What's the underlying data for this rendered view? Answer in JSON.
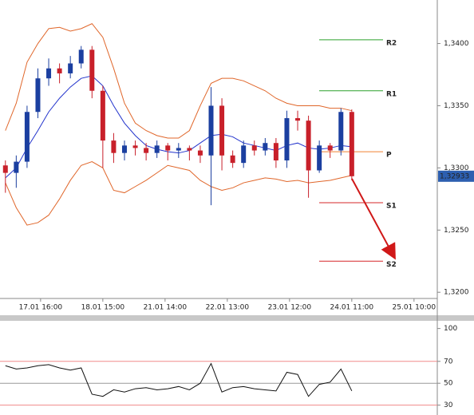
{
  "chart_data": [
    {
      "type": "candlestick",
      "x": [
        2,
        6,
        10,
        14,
        18,
        22,
        26,
        30,
        34,
        38,
        42,
        46,
        50,
        54,
        58,
        62,
        66,
        70,
        74,
        78,
        82,
        86,
        90,
        94,
        98,
        102,
        106,
        110,
        114,
        118,
        122,
        126,
        130
      ],
      "open": [
        1.3302,
        1.3296,
        1.3305,
        1.3345,
        1.3372,
        1.338,
        1.3376,
        1.3384,
        1.3395,
        1.3362,
        1.3322,
        1.3312,
        1.3318,
        1.3316,
        1.3312,
        1.3318,
        1.3314,
        1.3316,
        1.3314,
        1.331,
        1.335,
        1.331,
        1.3304,
        1.3318,
        1.3314,
        1.332,
        1.3306,
        1.334,
        1.3338,
        1.3298,
        1.3318,
        1.3314,
        1.3345
      ],
      "high": [
        1.3306,
        1.331,
        1.335,
        1.338,
        1.3388,
        1.3384,
        1.339,
        1.3398,
        1.3398,
        1.3366,
        1.3328,
        1.3322,
        1.3322,
        1.332,
        1.3322,
        1.332,
        1.332,
        1.3318,
        1.3318,
        1.3365,
        1.3356,
        1.3314,
        1.3322,
        1.3322,
        1.3324,
        1.3324,
        1.3346,
        1.3346,
        1.3342,
        1.3322,
        1.332,
        1.3348,
        1.3347
      ],
      "low": [
        1.328,
        1.3284,
        1.33,
        1.334,
        1.3366,
        1.3368,
        1.3372,
        1.338,
        1.3356,
        1.33,
        1.3304,
        1.3306,
        1.331,
        1.3306,
        1.3308,
        1.3306,
        1.3308,
        1.3306,
        1.3304,
        1.327,
        1.3298,
        1.33,
        1.33,
        1.331,
        1.331,
        1.33,
        1.33,
        1.333,
        1.3276,
        1.3296,
        1.3308,
        1.331,
        1.329
      ],
      "close": [
        1.3296,
        1.3305,
        1.3345,
        1.3372,
        1.338,
        1.3376,
        1.3384,
        1.3395,
        1.3362,
        1.3322,
        1.3312,
        1.3318,
        1.3316,
        1.3312,
        1.3318,
        1.3314,
        1.3316,
        1.3314,
        1.331,
        1.335,
        1.331,
        1.3304,
        1.3318,
        1.3314,
        1.332,
        1.3306,
        1.334,
        1.3338,
        1.3298,
        1.3318,
        1.3314,
        1.3345,
        1.32933
      ],
      "up_color": "#1b3fa0",
      "down_color": "#c8202a",
      "series": [
        {
          "color": "#e0662a",
          "values": [
            1.333,
            1.3352,
            1.3385,
            1.34,
            1.3412,
            1.3413,
            1.341,
            1.3412,
            1.3416,
            1.3405,
            1.338,
            1.3352,
            1.3336,
            1.333,
            1.3326,
            1.3324,
            1.3324,
            1.333,
            1.335,
            1.3368,
            1.3372,
            1.3372,
            1.337,
            1.3366,
            1.3362,
            1.3356,
            1.3352,
            1.335,
            1.335,
            1.335,
            1.3348,
            1.3348,
            1.3346
          ]
        },
        {
          "color": "#2233cc",
          "values": [
            1.3292,
            1.33,
            1.3316,
            1.333,
            1.3345,
            1.3356,
            1.3365,
            1.3372,
            1.3374,
            1.3366,
            1.335,
            1.3336,
            1.3326,
            1.3318,
            1.3315,
            1.3313,
            1.3312,
            1.3314,
            1.332,
            1.3326,
            1.3327,
            1.3325,
            1.332,
            1.3318,
            1.3316,
            1.3314,
            1.3318,
            1.332,
            1.3316,
            1.3315,
            1.3316,
            1.3318,
            1.3317
          ]
        },
        {
          "color": "#e0662a",
          "values": [
            1.3288,
            1.3268,
            1.3254,
            1.3256,
            1.3262,
            1.3275,
            1.329,
            1.3302,
            1.3305,
            1.33,
            1.3282,
            1.328,
            1.3285,
            1.329,
            1.3296,
            1.3302,
            1.33,
            1.3298,
            1.329,
            1.3285,
            1.3282,
            1.3284,
            1.3288,
            1.329,
            1.3292,
            1.3291,
            1.3289,
            1.329,
            1.3288,
            1.3289,
            1.329,
            1.3292,
            1.3294
          ]
        }
      ],
      "levels": [
        {
          "label": "R2",
          "value": 1.3403,
          "color": "#2ca02c"
        },
        {
          "label": "R1",
          "value": 1.3362,
          "color": "#2ca02c"
        },
        {
          "label": "P",
          "value": 1.3313,
          "color": "#f08030"
        },
        {
          "label": "S1",
          "value": 1.3272,
          "color": "#d62728"
        },
        {
          "label": "S2",
          "value": 1.3225,
          "color": "#d62728"
        }
      ],
      "last_price": {
        "value": 1.32933,
        "label": "1,32933"
      },
      "last_price_color": "#2d5fb0",
      "xlim": [
        0,
        161.6
      ],
      "xticks": [
        {
          "value": 15,
          "label": "17.01 16:00"
        },
        {
          "value": 38,
          "label": "18.01 15:00"
        },
        {
          "value": 61,
          "label": "21.01 14:00"
        },
        {
          "value": 84,
          "label": "22.01 13:00"
        },
        {
          "value": 107,
          "label": "23.01 12:00"
        },
        {
          "value": 130,
          "label": "24.01 11:00"
        },
        {
          "value": 153,
          "label": "25.01 10:00"
        }
      ],
      "ylim": [
        1.3195,
        1.3435
      ],
      "yticks": [
        {
          "value": 1.32,
          "label": "1,3200"
        },
        {
          "value": 1.325,
          "label": "1,3250"
        },
        {
          "value": 1.33,
          "label": "1,3300"
        },
        {
          "value": 1.335,
          "label": "1,3350"
        },
        {
          "value": 1.34,
          "label": "1,3400"
        }
      ]
    },
    {
      "type": "line",
      "x": [
        2,
        6,
        10,
        14,
        18,
        22,
        26,
        30,
        34,
        38,
        42,
        46,
        50,
        54,
        58,
        62,
        66,
        70,
        74,
        78,
        82,
        86,
        90,
        94,
        98,
        102,
        106,
        110,
        114,
        118,
        122,
        126,
        130
      ],
      "values": [
        66,
        63,
        64,
        66,
        67,
        64,
        62,
        64,
        40,
        38,
        44,
        42,
        45,
        46,
        44,
        45,
        47,
        44,
        50,
        68,
        42,
        46,
        47,
        45,
        44,
        43,
        60,
        58,
        38,
        49,
        51,
        63,
        43
      ],
      "color": "#111111",
      "xlim": [
        0,
        161.6
      ],
      "ylim": [
        21,
        107
      ],
      "yticks": [
        30,
        50,
        70,
        100
      ],
      "hlines": [
        70,
        50,
        30
      ],
      "hline_colors": [
        "#f08a8a",
        "#999999",
        "#f08a8a"
      ]
    }
  ]
}
